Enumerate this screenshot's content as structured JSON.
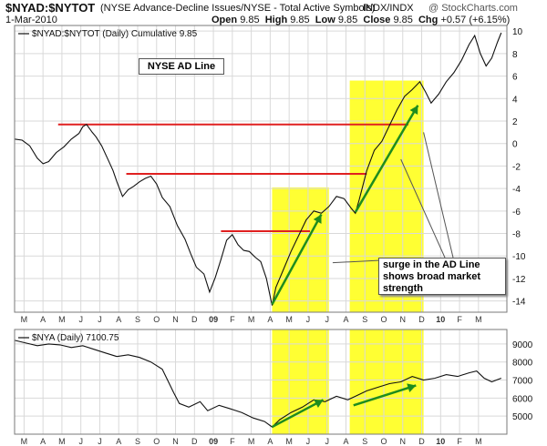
{
  "header": {
    "symbol": "$NYAD:$NYTOT",
    "description": "(NYSE Advance-Decline Issues/NYSE - Total Active Symbols)",
    "exchange": "INDX/INDX",
    "watermark": "@ StockCharts.com",
    "date": "1-Mar-2010",
    "open_label": "Open",
    "open": "9.85",
    "high_label": "High",
    "high": "9.85",
    "low_label": "Low",
    "low": "9.85",
    "close_label": "Close",
    "close": "9.85",
    "chg_label": "Chg",
    "chg": "+0.57 (+6.15%)"
  },
  "colors": {
    "price_line": "#111111",
    "resistance_line": "#e02020",
    "arrow": "#1e8c1e",
    "highlight": "#ffff33",
    "grid": "#d9d9d9",
    "frame": "#7a7a7a"
  },
  "chart_data": [
    {
      "type": "line",
      "panel": "main",
      "legend": "$NYAD:$NYTOT (Daily) Cumulative 9.85",
      "badge": "NYSE AD Line",
      "ylim": [
        -15,
        10.5
      ],
      "yticks": [
        -14,
        -12,
        -10,
        -8,
        -6,
        -4,
        -2,
        0,
        2,
        4,
        6,
        8,
        10
      ],
      "x_tick_labels": [
        "M",
        "A",
        "M",
        "J",
        "J",
        "A",
        "S",
        "O",
        "N",
        "D",
        "09",
        "F",
        "M",
        "A",
        "M",
        "J",
        "J",
        "A",
        "S",
        "O",
        "N",
        "D",
        "10",
        "F",
        "M"
      ],
      "series": [
        {
          "points": [
            [
              0,
              0.4
            ],
            [
              0.4,
              0.3
            ],
            [
              0.8,
              -0.2
            ],
            [
              1.2,
              -1.3
            ],
            [
              1.5,
              -1.8
            ],
            [
              1.8,
              -1.6
            ],
            [
              2.2,
              -0.8
            ],
            [
              2.6,
              -0.3
            ],
            [
              3,
              0.4
            ],
            [
              3.4,
              0.9
            ],
            [
              3.6,
              1.5
            ],
            [
              3.8,
              1.7
            ],
            [
              4.1,
              1.0
            ],
            [
              4.3,
              0.6
            ],
            [
              4.6,
              -0.2
            ],
            [
              4.9,
              -1.3
            ],
            [
              5.2,
              -2.4
            ],
            [
              5.4,
              -3.4
            ],
            [
              5.7,
              -4.7
            ],
            [
              6.0,
              -4.1
            ],
            [
              6.3,
              -3.8
            ],
            [
              6.6,
              -3.4
            ],
            [
              6.9,
              -3.1
            ],
            [
              7.2,
              -2.9
            ],
            [
              7.5,
              -3.6
            ],
            [
              7.8,
              -4.8
            ],
            [
              8.2,
              -5.6
            ],
            [
              8.6,
              -7.3
            ],
            [
              9,
              -8.5
            ],
            [
              9.3,
              -9.8
            ],
            [
              9.6,
              -11.0
            ],
            [
              10,
              -11.6
            ],
            [
              10.3,
              -13.2
            ],
            [
              10.6,
              -11.9
            ],
            [
              10.9,
              -10.3
            ],
            [
              11.2,
              -8.6
            ],
            [
              11.5,
              -8.1
            ],
            [
              11.8,
              -9.0
            ],
            [
              12.1,
              -9.5
            ],
            [
              12.4,
              -9.6
            ],
            [
              12.7,
              -10.1
            ],
            [
              13,
              -10.5
            ],
            [
              13.3,
              -12.0
            ],
            [
              13.5,
              -13.6
            ],
            [
              13.6,
              -14.4
            ],
            [
              13.8,
              -12.8
            ],
            [
              14.2,
              -11.2
            ],
            [
              14.6,
              -9.6
            ],
            [
              15,
              -8.2
            ],
            [
              15.4,
              -6.8
            ],
            [
              15.8,
              -6.0
            ],
            [
              16.2,
              -6.2
            ],
            [
              16.6,
              -5.6
            ],
            [
              17,
              -4.7
            ],
            [
              17.4,
              -4.9
            ],
            [
              17.8,
              -5.8
            ],
            [
              18.0,
              -6.2
            ],
            [
              18.2,
              -5.0
            ],
            [
              18.6,
              -2.4
            ],
            [
              19,
              -0.6
            ],
            [
              19.4,
              0.2
            ],
            [
              19.8,
              1.6
            ],
            [
              20.2,
              3.0
            ],
            [
              20.6,
              4.2
            ],
            [
              21,
              4.8
            ],
            [
              21.4,
              5.5
            ],
            [
              21.7,
              4.6
            ],
            [
              22,
              3.6
            ],
            [
              22.4,
              4.4
            ],
            [
              22.8,
              5.5
            ],
            [
              23.2,
              6.3
            ],
            [
              23.6,
              7.4
            ],
            [
              24,
              8.8
            ],
            [
              24.3,
              9.6
            ],
            [
              24.6,
              8.0
            ],
            [
              24.9,
              6.9
            ],
            [
              25.2,
              7.6
            ],
            [
              25.5,
              9.0
            ],
            [
              25.7,
              9.85
            ]
          ]
        }
      ],
      "resistance_lines": [
        {
          "y": 1.7,
          "x_start": 2.3,
          "x_end": 20.8
        },
        {
          "y": -2.7,
          "x_start": 5.9,
          "x_end": 18.6
        },
        {
          "y": -7.8,
          "x_start": 10.9,
          "x_end": 15.6
        }
      ],
      "highlight_zones": [
        [
          13.6,
          16.6
        ],
        [
          17.7,
          21.6
        ]
      ],
      "annotation": {
        "text_lines": [
          "surge in the AD Line",
          "shows broad market",
          "strength"
        ]
      }
    },
    {
      "type": "line",
      "panel": "lower",
      "legend": "$NYA (Daily) 7100.75",
      "ylim": [
        4000,
        9800
      ],
      "yticks": [
        5000,
        6000,
        7000,
        8000,
        9000
      ],
      "x_tick_labels": [
        "M",
        "A",
        "M",
        "J",
        "J",
        "A",
        "S",
        "O",
        "N",
        "D",
        "09",
        "F",
        "M",
        "A",
        "M",
        "J",
        "J",
        "A",
        "S",
        "O",
        "N",
        "D",
        "10",
        "F",
        "M"
      ],
      "series": [
        {
          "points": [
            [
              0,
              9200
            ],
            [
              0.6,
              9050
            ],
            [
              1.2,
              8900
            ],
            [
              1.8,
              9000
            ],
            [
              2.4,
              8950
            ],
            [
              3,
              8800
            ],
            [
              3.6,
              8900
            ],
            [
              4.2,
              8700
            ],
            [
              4.8,
              8500
            ],
            [
              5.4,
              8300
            ],
            [
              6,
              8400
            ],
            [
              6.6,
              8250
            ],
            [
              7.2,
              8000
            ],
            [
              7.8,
              7600
            ],
            [
              8.4,
              6300
            ],
            [
              8.7,
              5700
            ],
            [
              9.2,
              5500
            ],
            [
              9.8,
              5800
            ],
            [
              10.2,
              5300
            ],
            [
              10.8,
              5600
            ],
            [
              11.4,
              5400
            ],
            [
              12,
              5200
            ],
            [
              12.6,
              4900
            ],
            [
              13.2,
              4700
            ],
            [
              13.6,
              4400
            ],
            [
              14,
              4800
            ],
            [
              14.6,
              5200
            ],
            [
              15.2,
              5500
            ],
            [
              15.8,
              5900
            ],
            [
              16.4,
              5800
            ],
            [
              17,
              6100
            ],
            [
              17.6,
              5900
            ],
            [
              18,
              6100
            ],
            [
              18.6,
              6400
            ],
            [
              19.2,
              6600
            ],
            [
              19.8,
              6800
            ],
            [
              20.4,
              6900
            ],
            [
              21,
              7200
            ],
            [
              21.6,
              7000
            ],
            [
              22.2,
              7100
            ],
            [
              22.8,
              7300
            ],
            [
              23.4,
              7200
            ],
            [
              24,
              7400
            ],
            [
              24.4,
              7500
            ],
            [
              24.8,
              7100
            ],
            [
              25.2,
              6900
            ],
            [
              25.7,
              7100
            ]
          ]
        }
      ],
      "arrows": [
        [
          [
            13.6,
            4400
          ],
          [
            16.3,
            5900
          ]
        ],
        [
          [
            17.9,
            5600
          ],
          [
            21.2,
            6700
          ]
        ]
      ]
    }
  ]
}
